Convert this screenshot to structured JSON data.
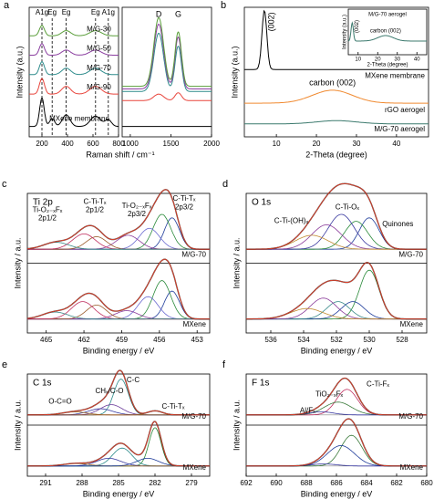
{
  "chart_data": [
    {
      "type": "stacked-spectra",
      "label": "a",
      "xlabel": "Raman shift / cm⁻¹",
      "ylabel": "Intensity (a.u.)",
      "xlim": [
        100,
        800
      ],
      "xticks": [
        200,
        400,
        600,
        800
      ],
      "ylim": [
        0,
        10
      ],
      "reference_lines": [
        200,
        280,
        390,
        620,
        720
      ],
      "annotations": [
        "A1g",
        "Eg",
        "Eg",
        "Eg",
        "A1g"
      ],
      "series": [
        {
          "name": "MXene membrane",
          "color": "#000000",
          "offset": 0.8,
          "peaks": [
            [
              200,
              2.2,
              18
            ],
            [
              280,
              0.6,
              20
            ],
            [
              390,
              0.9,
              30
            ],
            [
              620,
              0.8,
              40
            ],
            [
              720,
              0.5,
              25
            ]
          ]
        },
        {
          "name": "M/G-90",
          "color": "#e8453c",
          "offset": 3.3,
          "peaks": [
            [
              200,
              1.2,
              20
            ],
            [
              390,
              0.6,
              35
            ],
            [
              620,
              0.6,
              45
            ]
          ]
        },
        {
          "name": "M/G-70",
          "color": "#2f8c8c",
          "offset": 4.8,
          "peaks": [
            [
              200,
              1.0,
              20
            ],
            [
              390,
              0.5,
              35
            ],
            [
              620,
              0.5,
              45
            ]
          ]
        },
        {
          "name": "M/G-50",
          "color": "#8b3fa0",
          "offset": 6.3,
          "peaks": [
            [
              200,
              0.9,
              20
            ],
            [
              390,
              0.4,
              35
            ],
            [
              620,
              0.4,
              45
            ]
          ]
        },
        {
          "name": "M/G-30",
          "color": "#5a9e3a",
          "offset": 7.8,
          "peaks": [
            [
              200,
              0.8,
              20
            ],
            [
              390,
              0.4,
              35
            ],
            [
              620,
              0.4,
              45
            ]
          ]
        }
      ]
    },
    {
      "type": "stacked-spectra",
      "xlim": [
        900,
        2000
      ],
      "xticks": [
        1000,
        1500,
        2000
      ],
      "ylim": [
        0,
        10
      ],
      "annotations": [
        "D",
        "G"
      ],
      "series": [
        {
          "color": "#000000",
          "offset": 0.8,
          "peaks": []
        },
        {
          "color": "#e8453c",
          "offset": 2.8,
          "peaks": [
            [
              1350,
              0.5,
              60
            ],
            [
              1590,
              0.6,
              40
            ]
          ]
        },
        {
          "color": "#2f8c8c",
          "offset": 3.5,
          "peaks": [
            [
              1350,
              4.5,
              60
            ],
            [
              1590,
              3.5,
              40
            ]
          ]
        },
        {
          "color": "#8b3fa0",
          "offset": 3.7,
          "peaks": [
            [
              1350,
              5.0,
              60
            ],
            [
              1590,
              4.0,
              40
            ]
          ]
        },
        {
          "color": "#5a9e3a",
          "offset": 3.9,
          "peaks": [
            [
              1350,
              5.3,
              60
            ],
            [
              1590,
              4.2,
              40
            ]
          ]
        }
      ]
    },
    {
      "type": "stacked-spectra",
      "label": "b",
      "xlabel": "2-Theta (degree)",
      "ylabel": "Intensity (a.u.)",
      "xlim": [
        2,
        48
      ],
      "xticks": [
        10,
        20,
        30,
        40
      ],
      "ylim": [
        0,
        10
      ],
      "annotations": [
        "(002)",
        "carbon (002)"
      ],
      "series": [
        {
          "name": "MXene membrane",
          "color": "#000000",
          "offset": 5.2,
          "peaks": [
            [
              7,
              4.6,
              0.6
            ]
          ]
        },
        {
          "name": "rGO aerogel",
          "color": "#f08a30",
          "offset": 2.6,
          "peaks": [
            [
              24,
              1.0,
              5
            ]
          ]
        },
        {
          "name": "M/G-70 aerogel",
          "color": "#3c7a6e",
          "offset": 1.0,
          "peaks": [
            [
              25,
              0.25,
              5
            ]
          ]
        }
      ]
    },
    {
      "type": "stacked-spectra",
      "title": "M/G-70 aerogel",
      "xlabel": "2-Theta (degree)",
      "ylabel": "Intensity (a.u.)",
      "xlim": [
        5,
        45
      ],
      "xticks": [
        10,
        20,
        30,
        40
      ],
      "ylim": [
        0,
        10
      ],
      "annotations": [
        "(002)",
        "carbon (002)"
      ],
      "series": [
        {
          "color": "#3c7a6e",
          "offset": 3,
          "peaks": [
            [
              7,
              4,
              0.6
            ],
            [
              24,
              1.2,
              4
            ]
          ]
        }
      ]
    },
    {
      "type": "xps",
      "label": "c",
      "title": "Ti 2p",
      "xlabel": "Binding energy / eV",
      "ylabel": "Intensity / a.u.",
      "xlim": [
        466.5,
        452
      ],
      "xticks": [
        465,
        462,
        459,
        456,
        453
      ],
      "ylim": [
        0,
        10
      ],
      "envelope_color": "#e0402a",
      "annotations": [
        "Ti-O₂₋ₓFₓ",
        "2p1/2",
        "C-Ti-Tₓ",
        "2p1/2",
        "Ti-O₂₋ₓFₓ",
        "2p3/2",
        "C-Ti-Tₓ",
        "2p3/2"
      ],
      "series": [
        {
          "name": "M/G-70",
          "offset": 2,
          "peaks": [
            [
              455.0,
              4.5,
              0.6
            ],
            [
              455.8,
              5,
              0.7
            ],
            [
              456.8,
              3,
              0.8
            ],
            [
              458.5,
              2,
              0.9
            ],
            [
              461.0,
              1.8,
              0.8
            ],
            [
              462.0,
              2.2,
              0.9
            ],
            [
              464.2,
              1,
              1
            ]
          ],
          "peak_colors": [
            "#1f3c9a",
            "#2a8a3a",
            "#6a6ad0",
            "#8a3c9a",
            "#9a5a2a",
            "#c03060",
            "#3a8a8a"
          ]
        },
        {
          "name": "MXene",
          "offset": 2,
          "peaks": [
            [
              455.0,
              4,
              0.6
            ],
            [
              455.8,
              5.5,
              0.7
            ],
            [
              456.9,
              3.2,
              0.8
            ],
            [
              458.6,
              1.2,
              0.9
            ],
            [
              461.0,
              2,
              0.8
            ],
            [
              462.1,
              2.5,
              0.9
            ],
            [
              464.3,
              1,
              1
            ]
          ],
          "peak_colors": [
            "#1f3c9a",
            "#2a8a3a",
            "#6a6ad0",
            "#8a3c9a",
            "#9a5a2a",
            "#c03060",
            "#3a8a8a"
          ]
        }
      ]
    },
    {
      "type": "xps",
      "label": "d",
      "title": "O 1s",
      "xlabel": "Binding energy / eV",
      "ylabel": "Intensity / a.u.",
      "xlim": [
        537.5,
        526.5
      ],
      "xticks": [
        536,
        534,
        532,
        530,
        528
      ],
      "ylim": [
        0,
        10
      ],
      "envelope_color": "#e0402a",
      "annotations": [
        "C-Ti-(OH)ₓ",
        "C-Ti-Oₓ",
        "Quinones"
      ],
      "series": [
        {
          "name": "M/G-70",
          "offset": 2,
          "peaks": [
            [
              530.0,
              4.5,
              0.6
            ],
            [
              530.8,
              4,
              0.7
            ],
            [
              531.7,
              5,
              0.8
            ],
            [
              532.6,
              3.5,
              0.9
            ],
            [
              533.5,
              2,
              1
            ]
          ],
          "peak_colors": [
            "#1f3c9a",
            "#2a8a3a",
            "#3a3aa0",
            "#8a3c9a",
            "#c08a30"
          ]
        },
        {
          "name": "MXene",
          "offset": 2,
          "peaks": [
            [
              530.0,
              7,
              0.6
            ],
            [
              531.0,
              2.5,
              0.7
            ],
            [
              531.9,
              2.5,
              0.7
            ],
            [
              532.8,
              3,
              0.8
            ],
            [
              533.8,
              1.5,
              1
            ]
          ],
          "peak_colors": [
            "#2a8a3a",
            "#1f3c9a",
            "#3a8a8a",
            "#8a3c9a",
            "#c08a30"
          ]
        }
      ]
    },
    {
      "type": "xps",
      "label": "e",
      "title": "C 1s",
      "xlabel": "Binding energy / eV",
      "ylabel": "Intensity / a.u.",
      "xlim": [
        292.5,
        277.5
      ],
      "xticks": [
        291,
        288,
        285,
        282,
        279
      ],
      "ylim": [
        0,
        10
      ],
      "envelope_color": "#e0402a",
      "annotations": [
        "C-C",
        "CHₓ/C-O",
        "O-C=O",
        "C-Ti-Tₓ"
      ],
      "series": [
        {
          "name": "M/G-70",
          "offset": 2,
          "peaks": [
            [
              284.8,
              7,
              0.6
            ],
            [
              285.6,
              2,
              0.9
            ],
            [
              286.5,
              1.2,
              1
            ],
            [
              288.6,
              0.6,
              1
            ],
            [
              282.0,
              0.8,
              0.6
            ]
          ],
          "peak_colors": [
            "#2a8a8a",
            "#6a3a9a",
            "#3a3aa0",
            "#9a6a2a",
            "#9a5a2a"
          ]
        },
        {
          "name": "MXene",
          "offset": 2,
          "peaks": [
            [
              282.0,
              7.5,
              0.5
            ],
            [
              284.7,
              3.5,
              0.8
            ],
            [
              285.8,
              1.5,
              1
            ],
            [
              288.5,
              0.5,
              1
            ],
            [
              282.6,
              1.5,
              0.9
            ]
          ],
          "peak_colors": [
            "#2a8a3a",
            "#2a8a8a",
            "#3a3aa0",
            "#9a6a2a",
            "#1f3c9a"
          ]
        }
      ]
    },
    {
      "type": "xps",
      "label": "f",
      "title": "F 1s",
      "xlabel": "Binding energy / eV",
      "ylabel": "Intensity / a.u.",
      "xlim": [
        692,
        680
      ],
      "xticks": [
        692,
        690,
        688,
        686,
        684,
        682,
        680
      ],
      "ylim": [
        0,
        10
      ],
      "envelope_color": "#e0402a",
      "annotations": [
        "TiO₂₋ₓFₓ",
        "C-Ti-Fₓ",
        "Al/Fₓ"
      ],
      "series": [
        {
          "name": "M/G-70",
          "offset": 2,
          "peaks": [
            [
              685.3,
              5,
              0.7
            ],
            [
              685.9,
              2.5,
              0.9
            ],
            [
              687.0,
              0.6,
              0.8
            ]
          ],
          "peak_colors": [
            "#c03060",
            "#3a7a3a",
            "#3a3aa0"
          ]
        },
        {
          "name": "MXene",
          "offset": 2,
          "peaks": [
            [
              685.0,
              6,
              0.7
            ],
            [
              685.7,
              4,
              0.9
            ],
            [
              686.8,
              0.4,
              0.8
            ]
          ],
          "peak_colors": [
            "#3a7a3a",
            "#1f3c9a",
            "#3a3aa0"
          ]
        }
      ]
    }
  ]
}
